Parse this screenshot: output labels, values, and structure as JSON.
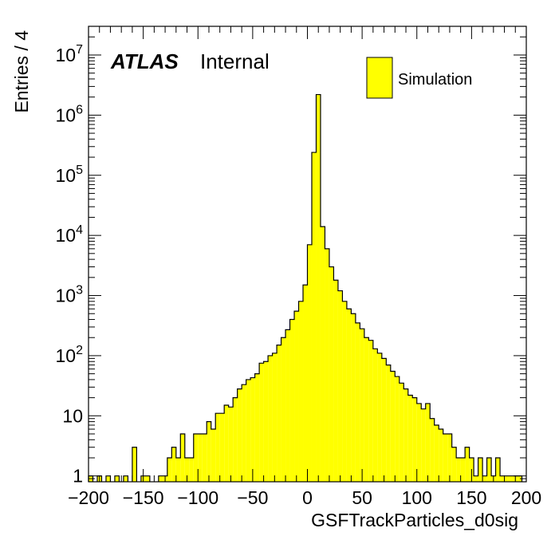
{
  "chart_data": {
    "type": "bar",
    "xlabel": "GSFTrackParticles_d0sig",
    "ylabel": "Entries / 4",
    "xlim": [
      -200,
      200
    ],
    "ylim": [
      0.8,
      30000000
    ],
    "y_scale": "log",
    "bin_width": 4,
    "x_ticks": [
      -200,
      -150,
      -100,
      -50,
      0,
      50,
      100,
      150,
      200
    ],
    "x_tick_labels": [
      "−200",
      "−150",
      "−100",
      "−50",
      "0",
      "50",
      "100",
      "150",
      "200"
    ],
    "y_ticks": [
      {
        "value": 1,
        "base": "1",
        "exp": ""
      },
      {
        "value": 10,
        "base": "10",
        "exp": ""
      },
      {
        "value": 100,
        "base": "10",
        "exp": "2"
      },
      {
        "value": 1000,
        "base": "10",
        "exp": "3"
      },
      {
        "value": 10000,
        "base": "10",
        "exp": "4"
      },
      {
        "value": 100000,
        "base": "10",
        "exp": "5"
      },
      {
        "value": 1000000,
        "base": "10",
        "exp": "6"
      },
      {
        "value": 10000000,
        "base": "10",
        "exp": "7"
      }
    ],
    "fill_color": "#ffff00",
    "line_color": "#000000",
    "label_atlas": "ATLAS",
    "label_internal": "Internal",
    "legend_position": "top-right",
    "series": [
      {
        "name": "Simulation",
        "bins": [
          [
            -198,
            1
          ],
          [
            -190,
            1
          ],
          [
            -182,
            1
          ],
          [
            -174,
            1
          ],
          [
            -166,
            1
          ],
          [
            -158,
            3
          ],
          [
            -150,
            1
          ],
          [
            -146,
            1
          ],
          [
            -134,
            1
          ],
          [
            -130,
            1
          ],
          [
            -126,
            2
          ],
          [
            -122,
            3
          ],
          [
            -118,
            2
          ],
          [
            -114,
            5
          ],
          [
            -110,
            2
          ],
          [
            -106,
            2
          ],
          [
            -102,
            5
          ],
          [
            -98,
            5
          ],
          [
            -94,
            5
          ],
          [
            -90,
            8
          ],
          [
            -86,
            6
          ],
          [
            -82,
            11
          ],
          [
            -78,
            11
          ],
          [
            -74,
            15
          ],
          [
            -70,
            14
          ],
          [
            -66,
            20
          ],
          [
            -62,
            28
          ],
          [
            -58,
            33
          ],
          [
            -54,
            40
          ],
          [
            -50,
            43
          ],
          [
            -46,
            50
          ],
          [
            -42,
            75
          ],
          [
            -38,
            80
          ],
          [
            -34,
            100
          ],
          [
            -30,
            110
          ],
          [
            -26,
            150
          ],
          [
            -22,
            200
          ],
          [
            -18,
            270
          ],
          [
            -14,
            400
          ],
          [
            -10,
            550
          ],
          [
            -6,
            800
          ],
          [
            -2,
            1500
          ],
          [
            2,
            7000
          ],
          [
            6,
            240000
          ],
          [
            10,
            2200000
          ],
          [
            14,
            14000
          ],
          [
            18,
            6000
          ],
          [
            22,
            3000
          ],
          [
            26,
            1800
          ],
          [
            30,
            1200
          ],
          [
            34,
            800
          ],
          [
            38,
            600
          ],
          [
            42,
            500
          ],
          [
            46,
            350
          ],
          [
            50,
            280
          ],
          [
            54,
            200
          ],
          [
            58,
            180
          ],
          [
            62,
            130
          ],
          [
            66,
            110
          ],
          [
            70,
            90
          ],
          [
            74,
            70
          ],
          [
            78,
            55
          ],
          [
            82,
            45
          ],
          [
            86,
            35
          ],
          [
            90,
            28
          ],
          [
            94,
            22
          ],
          [
            98,
            20
          ],
          [
            102,
            16
          ],
          [
            106,
            13
          ],
          [
            110,
            16
          ],
          [
            114,
            9
          ],
          [
            118,
            7
          ],
          [
            122,
            6
          ],
          [
            126,
            5
          ],
          [
            130,
            5
          ],
          [
            134,
            3
          ],
          [
            138,
            2
          ],
          [
            142,
            2
          ],
          [
            146,
            3
          ],
          [
            150,
            2
          ],
          [
            154,
            1
          ],
          [
            158,
            2
          ],
          [
            162,
            1
          ],
          [
            166,
            2
          ],
          [
            170,
            1
          ],
          [
            174,
            2
          ],
          [
            178,
            1
          ],
          [
            182,
            1
          ],
          [
            186,
            1
          ],
          [
            190,
            1
          ],
          [
            194,
            1
          ]
        ]
      }
    ]
  }
}
